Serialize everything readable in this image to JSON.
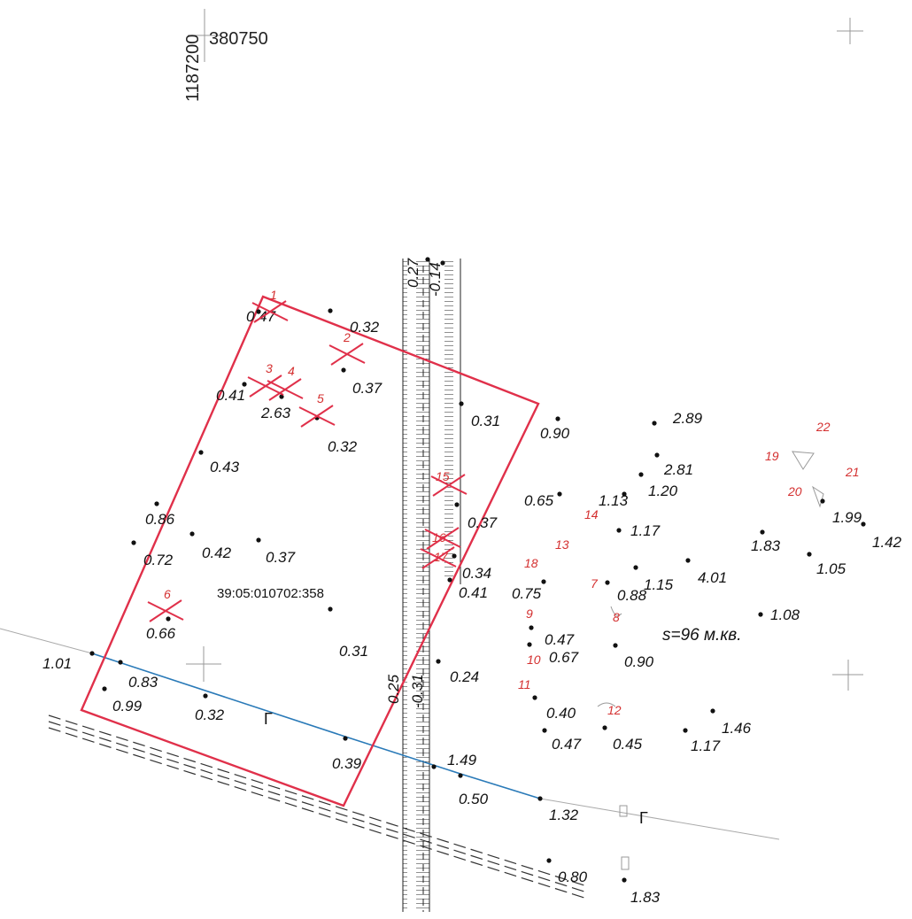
{
  "header": {
    "y_coord": "1187200",
    "x_coord": "380750"
  },
  "parcel": {
    "cadastral_number": "39:05:010702:358",
    "area": "s=96 м.кв."
  },
  "elevations": [
    "0.47",
    "0.32",
    "0.37",
    "0.41",
    "2.63",
    "0.32",
    "0.31",
    "0.90",
    "2.89",
    "2.81",
    "1.20",
    "1.13",
    "0.65",
    "0.43",
    "0.37",
    "1.17",
    "0.86",
    "0.72",
    "0.42",
    "0.37",
    "0.34",
    "0.41",
    "0.75",
    "0.88",
    "1.15",
    "4.01",
    "1.83",
    "1.99",
    "1.42",
    "1.05",
    "1.08",
    "0.66",
    "0.31",
    "0.47",
    "0.67",
    "0.90",
    "1.01",
    "0.83",
    "0.99",
    "0.32",
    "0.24",
    "0.40",
    "0.47",
    "0.45",
    "1.46",
    "1.17",
    "0.39",
    "1.49",
    "0.50",
    "1.32",
    "0.80",
    "1.83",
    "0.27",
    "-0.14",
    "0.25",
    "-0.31"
  ],
  "point_numbers": [
    "1",
    "2",
    "3",
    "4",
    "5",
    "6",
    "7",
    "8",
    "9",
    "10",
    "11",
    "12",
    "13",
    "14",
    "15",
    "16",
    "17",
    "18",
    "19",
    "20",
    "21",
    "22"
  ],
  "contour_labels": [
    "Г",
    "Г"
  ]
}
